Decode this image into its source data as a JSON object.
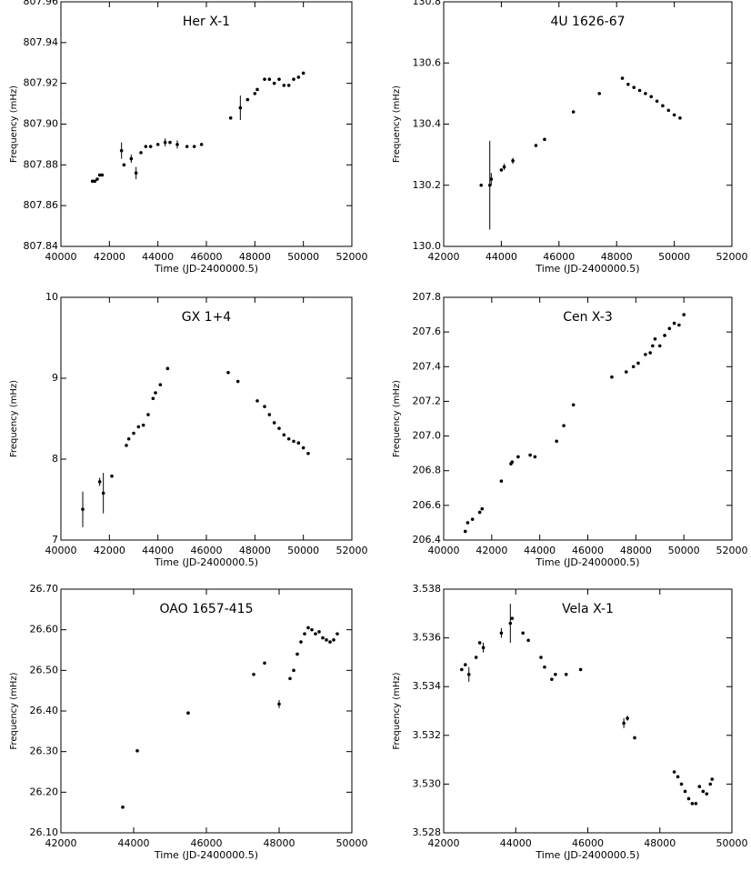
{
  "chart_data": [
    {
      "type": "scatter",
      "title": "Her X-1",
      "x_label": "Time (JD-2400000.5)",
      "y_label": "Frequency (mHz)",
      "xlim": [
        40000,
        52000
      ],
      "xticks": [
        40000,
        42000,
        44000,
        46000,
        48000,
        50000,
        52000
      ],
      "ylim": [
        807.84,
        807.96
      ],
      "yticks": [
        807.84,
        807.86,
        807.88,
        {
          "value": 807.9,
          "label": "807.90"
        },
        807.92,
        807.94,
        807.96
      ],
      "color": "#000000",
      "x": [
        41300,
        41400,
        41500,
        41600,
        41700,
        42500,
        42600,
        42900,
        43100,
        43300,
        43500,
        43700,
        44000,
        44300,
        44500,
        44800,
        45200,
        45500,
        45800,
        47000,
        47400,
        47700,
        48000,
        48100,
        48400,
        48600,
        48800,
        49000,
        49200,
        49400,
        49600,
        49800,
        50000
      ],
      "values": [
        807.872,
        807.872,
        807.873,
        807.875,
        807.875,
        807.887,
        807.88,
        807.883,
        807.876,
        807.886,
        807.889,
        807.889,
        807.89,
        807.891,
        807.891,
        807.89,
        807.889,
        807.889,
        807.89,
        807.903,
        807.908,
        807.912,
        807.915,
        807.917,
        807.922,
        807.922,
        807.92,
        807.922,
        807.919,
        807.919,
        807.922,
        807.923,
        807.925
      ],
      "errors": [
        null,
        null,
        null,
        null,
        null,
        0.004,
        null,
        0.002,
        0.003,
        null,
        null,
        null,
        null,
        0.002,
        null,
        0.002,
        null,
        null,
        null,
        null,
        0.006,
        null,
        null,
        null,
        null,
        null,
        null,
        null,
        null,
        null,
        null,
        null,
        null
      ]
    },
    {
      "type": "scatter",
      "title": "4U 1626-67",
      "x_label": "Time (JD-2400000.5)",
      "y_label": "Frequency (mHz)",
      "xlim": [
        42000,
        52000
      ],
      "xticks": [
        42000,
        44000,
        46000,
        48000,
        50000,
        52000
      ],
      "ylim": [
        130.0,
        130.8
      ],
      "yticks": [
        {
          "value": 130.0,
          "label": "130.0"
        },
        130.2,
        130.4,
        130.6,
        130.8
      ],
      "color": "#000000",
      "x": [
        43300,
        43600,
        43650,
        44000,
        44100,
        44400,
        45200,
        45500,
        46500,
        47400,
        48200,
        48400,
        48600,
        48800,
        49000,
        49200,
        49400,
        49600,
        49800,
        50000,
        50200
      ],
      "values": [
        130.2,
        130.2,
        130.22,
        130.25,
        130.26,
        130.28,
        130.33,
        130.35,
        130.44,
        130.5,
        130.55,
        130.53,
        130.52,
        130.51,
        130.5,
        130.49,
        130.475,
        130.46,
        130.445,
        130.43,
        130.42
      ],
      "errors": [
        null,
        0.145,
        0.02,
        null,
        0.01,
        0.01,
        null,
        null,
        null,
        null,
        null,
        null,
        null,
        null,
        null,
        null,
        null,
        null,
        null,
        null,
        null
      ]
    },
    {
      "type": "scatter",
      "title": "GX 1+4",
      "x_label": "Time (JD-2400000.5)",
      "y_label": "Frequency (mHz)",
      "xlim": [
        40000,
        52000
      ],
      "xticks": [
        40000,
        42000,
        44000,
        46000,
        48000,
        50000,
        52000
      ],
      "ylim": [
        7,
        10
      ],
      "yticks": [
        7,
        8,
        9,
        10
      ],
      "color": "#000000",
      "x": [
        40900,
        41600,
        41750,
        42100,
        42700,
        42800,
        43000,
        43200,
        43400,
        43600,
        43800,
        43900,
        44100,
        44400,
        46900,
        47300,
        48100,
        48400,
        48600,
        48800,
        49000,
        49200,
        49400,
        49600,
        49800,
        50000,
        50200
      ],
      "values": [
        7.38,
        7.72,
        7.58,
        7.79,
        8.17,
        8.25,
        8.32,
        8.4,
        8.42,
        8.55,
        8.75,
        8.82,
        8.92,
        9.12,
        9.07,
        8.96,
        8.72,
        8.65,
        8.55,
        8.45,
        8.38,
        8.3,
        8.25,
        8.22,
        8.2,
        8.14,
        8.07
      ],
      "errors": [
        0.22,
        0.05,
        0.25,
        null,
        null,
        null,
        null,
        null,
        null,
        null,
        null,
        null,
        null,
        null,
        null,
        null,
        null,
        null,
        null,
        null,
        null,
        null,
        null,
        null,
        null,
        null,
        null
      ]
    },
    {
      "type": "scatter",
      "title": "Cen X-3",
      "x_label": "Time (JD-2400000.5)",
      "y_label": "Frequency (mHz)",
      "xlim": [
        40000,
        52000
      ],
      "xticks": [
        40000,
        42000,
        44000,
        46000,
        48000,
        50000,
        52000
      ],
      "ylim": [
        206.4,
        207.8
      ],
      "yticks": [
        206.4,
        206.6,
        206.8,
        {
          "value": 207.0,
          "label": "207.0"
        },
        207.2,
        207.4,
        207.6,
        207.8
      ],
      "color": "#000000",
      "x": [
        40900,
        41000,
        41200,
        41500,
        41600,
        42400,
        42800,
        42850,
        43100,
        43600,
        43800,
        44700,
        45000,
        45400,
        47000,
        47600,
        47900,
        48100,
        48400,
        48600,
        48700,
        48800,
        49000,
        49200,
        49400,
        49600,
        49800,
        50000
      ],
      "values": [
        206.45,
        206.5,
        206.52,
        206.56,
        206.58,
        206.74,
        206.84,
        206.85,
        206.88,
        206.89,
        206.88,
        206.97,
        207.06,
        207.18,
        207.34,
        207.37,
        207.4,
        207.42,
        207.47,
        207.48,
        207.52,
        207.56,
        207.52,
        207.58,
        207.62,
        207.65,
        207.64,
        207.7
      ],
      "errors": [
        null,
        null,
        null,
        null,
        null,
        null,
        null,
        null,
        null,
        null,
        null,
        null,
        null,
        null,
        null,
        null,
        null,
        null,
        null,
        null,
        null,
        null,
        null,
        null,
        null,
        null,
        null,
        null
      ]
    },
    {
      "type": "scatter",
      "title": "OAO 1657-415",
      "x_label": "Time (JD-2400000.5)",
      "y_label": "Frequency (mHz)",
      "xlim": [
        42000,
        50000
      ],
      "xticks": [
        42000,
        44000,
        46000,
        48000,
        50000
      ],
      "ylim": [
        26.1,
        26.7
      ],
      "yticks": [
        {
          "value": 26.1,
          "label": "26.10"
        },
        {
          "value": 26.2,
          "label": "26.20"
        },
        {
          "value": 26.3,
          "label": "26.30"
        },
        {
          "value": 26.4,
          "label": "26.40"
        },
        {
          "value": 26.5,
          "label": "26.50"
        },
        {
          "value": 26.6,
          "label": "26.60"
        },
        {
          "value": 26.7,
          "label": "26.70"
        }
      ],
      "color": "#000000",
      "x": [
        43700,
        44100,
        45500,
        47300,
        47600,
        48000,
        48300,
        48400,
        48500,
        48600,
        48700,
        48800,
        48900,
        49000,
        49100,
        49200,
        49300,
        49400,
        49500,
        49600
      ],
      "values": [
        26.163,
        26.302,
        26.395,
        26.49,
        26.518,
        26.417,
        26.48,
        26.5,
        26.54,
        26.57,
        26.59,
        26.605,
        26.6,
        26.59,
        26.595,
        26.58,
        26.575,
        26.57,
        26.575,
        26.59
      ],
      "errors": [
        null,
        0.004,
        null,
        null,
        null,
        0.01,
        null,
        null,
        null,
        null,
        null,
        null,
        null,
        null,
        null,
        null,
        null,
        null,
        null,
        null
      ]
    },
    {
      "type": "scatter",
      "title": "Vela X-1",
      "x_label": "Time (JD-2400000.5)",
      "y_label": "Frequency (mHz)",
      "xlim": [
        42000,
        50000
      ],
      "xticks": [
        42000,
        44000,
        46000,
        48000,
        50000
      ],
      "ylim": [
        3.528,
        3.538
      ],
      "yticks": [
        3.528,
        {
          "value": 3.53,
          "label": "3.530"
        },
        3.532,
        3.534,
        3.536,
        3.538
      ],
      "color": "#000000",
      "x": [
        42500,
        42600,
        42700,
        42900,
        43000,
        43100,
        43600,
        43850,
        43900,
        44200,
        44350,
        44700,
        44800,
        45000,
        45100,
        45400,
        45800,
        47000,
        47100,
        47300,
        48400,
        48500,
        48600,
        48700,
        48800,
        48900,
        49000,
        49100,
        49200,
        49300,
        49400,
        49450
      ],
      "values": [
        3.5347,
        3.5349,
        3.5345,
        3.5352,
        3.5358,
        3.5356,
        3.5362,
        3.5366,
        3.5368,
        3.5362,
        3.5359,
        3.5352,
        3.5348,
        3.5343,
        3.5345,
        3.5345,
        3.5347,
        3.5325,
        3.5327,
        3.5319,
        3.5305,
        3.5303,
        3.53,
        3.5297,
        3.5294,
        3.5292,
        3.5292,
        3.5299,
        3.5297,
        3.5296,
        3.53,
        3.5302
      ],
      "errors": [
        null,
        null,
        0.0003,
        null,
        null,
        0.0002,
        0.0002,
        0.0008,
        null,
        null,
        null,
        null,
        null,
        null,
        null,
        null,
        null,
        0.0002,
        0.0001,
        null,
        null,
        null,
        null,
        null,
        null,
        null,
        null,
        null,
        null,
        null,
        null,
        null
      ]
    }
  ]
}
